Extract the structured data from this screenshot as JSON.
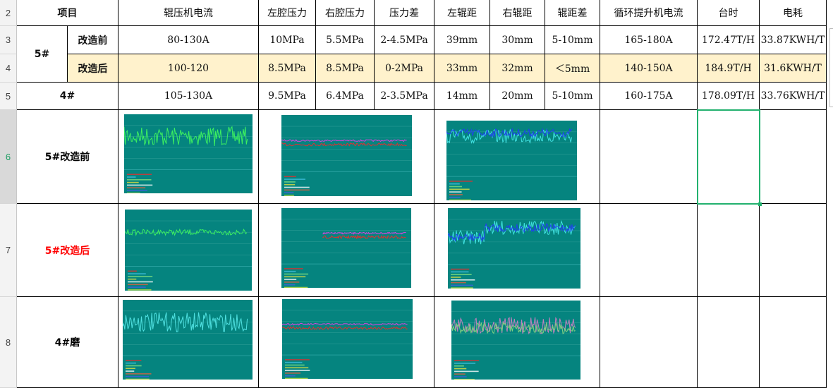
{
  "row_numbers": [
    "2",
    "3",
    "4",
    "5",
    "6",
    "7",
    "8"
  ],
  "headers": [
    "项目",
    "辊压机电流",
    "左腔压力",
    "右腔压力",
    "压力差",
    "左辊距",
    "右辊距",
    "辊距差",
    "循环提升机电流",
    "台时",
    "电耗"
  ],
  "group_5": "5#",
  "rows": [
    {
      "label": "改造前",
      "values": [
        "80-130A",
        "10MPa",
        "5.5MPa",
        "2-4.5MPa",
        "39mm",
        "30mm",
        "5-10mm",
        "165-180A",
        "172.47T/H",
        "33.87KWH/T"
      ]
    },
    {
      "label": "改造后",
      "values": [
        "100-120",
        "8.5MPa",
        "8.5MPa",
        "0-2MPa",
        "33mm",
        "32mm",
        "＜5mm",
        "140-150A",
        "184.9T/H",
        "31.6KWH/T"
      ]
    },
    {
      "label": "4#",
      "values": [
        "105-130A",
        "9.5MPa",
        "6.4MPa",
        "2-3.5MPa",
        "14mm",
        "20mm",
        "5-10mm",
        "160-175A",
        "178.09T/H",
        "33.76KWH/T"
      ]
    }
  ],
  "chart_rows": [
    {
      "label": "5#改造前",
      "label_color": "#000000"
    },
    {
      "label": "5#改造后",
      "label_color": "#ff0000"
    },
    {
      "label": "4#磨",
      "label_color": "#000000"
    }
  ],
  "colors": {
    "chart_bg": "#05847f",
    "highlight_row": "#fff2cc",
    "selection": "#22b16e"
  }
}
